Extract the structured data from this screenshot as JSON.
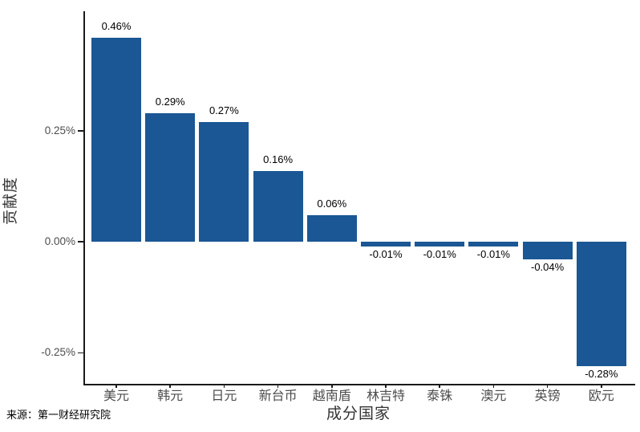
{
  "chart_data": {
    "type": "bar",
    "title": "",
    "categories": [
      "美元",
      "韩元",
      "日元",
      "新台币",
      "越南盾",
      "林吉特",
      "泰铢",
      "澳元",
      "英镑",
      "欧元"
    ],
    "values": [
      0.46,
      0.29,
      0.27,
      0.16,
      0.06,
      -0.01,
      -0.01,
      -0.01,
      -0.04,
      -0.28
    ],
    "bar_labels": [
      "0.46%",
      "0.29%",
      "0.27%",
      "0.16%",
      "0.06%",
      "-0.01%",
      "-0.01%",
      "-0.01%",
      "-0.04%",
      "-0.28%"
    ],
    "xlabel": "成分国家",
    "ylabel": "贡献度",
    "yticks": [
      {
        "value": 0.25,
        "label": "0.25%"
      },
      {
        "value": 0.0,
        "label": "0.00%"
      },
      {
        "value": -0.25,
        "label": "-0.25%"
      }
    ],
    "ylim": [
      -0.32,
      0.52
    ],
    "unit": "percent",
    "bar_color": "#1a5794",
    "grid": false,
    "legend": false
  },
  "footer": {
    "source": "来源：第一财经研究院"
  }
}
